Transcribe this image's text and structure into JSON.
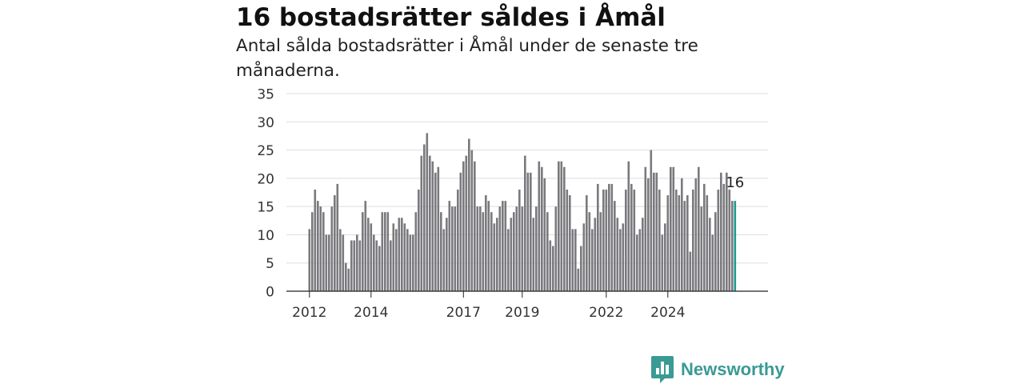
{
  "header": {
    "title": "16 bostadsrätter såldes i Åmål",
    "subtitle": "Antal sålda bostadsrätter i Åmål under de senaste tre månaderna."
  },
  "brand": {
    "name": "Newsworthy",
    "icon": "bar-chart-speech-bubble-icon"
  },
  "colors": {
    "bar": "#7a7a7e",
    "highlight": "#1c9a92",
    "grid": "#dddddd",
    "brand": "#3a9a94"
  },
  "chart_data": {
    "type": "bar",
    "y_ticks": [
      0,
      5,
      10,
      15,
      20,
      25,
      30,
      35
    ],
    "ylim": [
      0,
      35
    ],
    "x_tick_labels": [
      "2012",
      "2014",
      "2017",
      "2019",
      "2022",
      "2024"
    ],
    "x_tick_bar_index": [
      0,
      22,
      55,
      76,
      106,
      128
    ],
    "grid": true,
    "highlight_last": true,
    "last_value_label": "16",
    "values": [
      11,
      14,
      18,
      16,
      15,
      14,
      10,
      10,
      15,
      17,
      19,
      11,
      10,
      5,
      4,
      9,
      9,
      10,
      9,
      14,
      16,
      13,
      12,
      10,
      9,
      8,
      14,
      14,
      14,
      9,
      12,
      11,
      13,
      13,
      12,
      11,
      10,
      10,
      14,
      18,
      24,
      26,
      28,
      24,
      23,
      21,
      22,
      14,
      11,
      13,
      16,
      15,
      15,
      18,
      21,
      23,
      24,
      27,
      25,
      23,
      15,
      15,
      14,
      17,
      16,
      14,
      12,
      13,
      15,
      16,
      16,
      11,
      13,
      14,
      15,
      18,
      15,
      24,
      21,
      21,
      13,
      15,
      23,
      22,
      20,
      14,
      9,
      8,
      15,
      23,
      23,
      22,
      18,
      17,
      11,
      11,
      4,
      8,
      12,
      17,
      14,
      11,
      13,
      19,
      14,
      18,
      18,
      19,
      19,
      16,
      13,
      11,
      12,
      18,
      23,
      19,
      18,
      10,
      11,
      13,
      22,
      20,
      25,
      21,
      21,
      18,
      10,
      12,
      17,
      22,
      22,
      18,
      17,
      20,
      16,
      17,
      7,
      18,
      20,
      22,
      15,
      19,
      17,
      13,
      10,
      14,
      18,
      21,
      19,
      21,
      18,
      16,
      16
    ]
  }
}
